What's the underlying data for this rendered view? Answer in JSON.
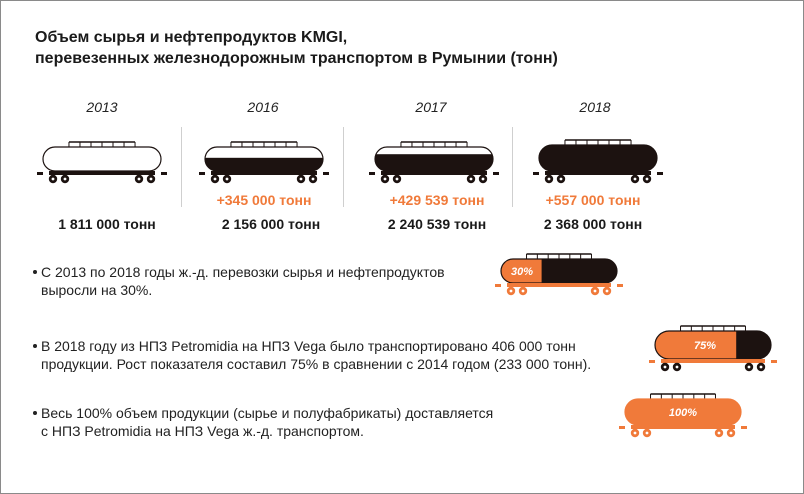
{
  "title": {
    "line1": "Объем сырья и нефтепродуктов KMGI,",
    "line2": "перевезенных железнодорожным транспортом в Румынии (тонн)"
  },
  "years": [
    {
      "label": "2013",
      "delta": "",
      "tons": "1 811 000 тонн",
      "fill_fraction": 0.0
    },
    {
      "label": "2016",
      "delta": "+345 000 тонн",
      "tons": "2 156 000 тонн",
      "fill_fraction": 0.55
    },
    {
      "label": "2017",
      "delta": "+429 539 тонн",
      "tons": "2 240 539 тонн",
      "fill_fraction": 0.7
    },
    {
      "label": "2018",
      "delta": "+557 000 тонн",
      "tons": "2 368 000 тонн",
      "fill_fraction": 1.0
    }
  ],
  "facts": [
    {
      "line1": "С 2013 по 2018 годы ж.-д. перевозки сырья и нефтепродуктов",
      "line2": "выросли на 30%.",
      "badge": "30%"
    },
    {
      "line1": "В 2018 году из НПЗ Petromidia на НПЗ Vega было транспортировано 406 000 тонн",
      "line2": "продукции. Рост показателя составил 75% в сравнении с 2014 годом (233 000 тонн).",
      "badge": "75%"
    },
    {
      "line1": "Весь 100% объем продукции (сырье и полуфабрикаты) доставляется",
      "line2": "с НПЗ Petromidia на НПЗ Vega ж.-д. транспортом.",
      "badge": "100%"
    }
  ],
  "colors": {
    "orange": "#f07a3a",
    "dark": "#1c1210",
    "black": "#1a1a1a"
  }
}
